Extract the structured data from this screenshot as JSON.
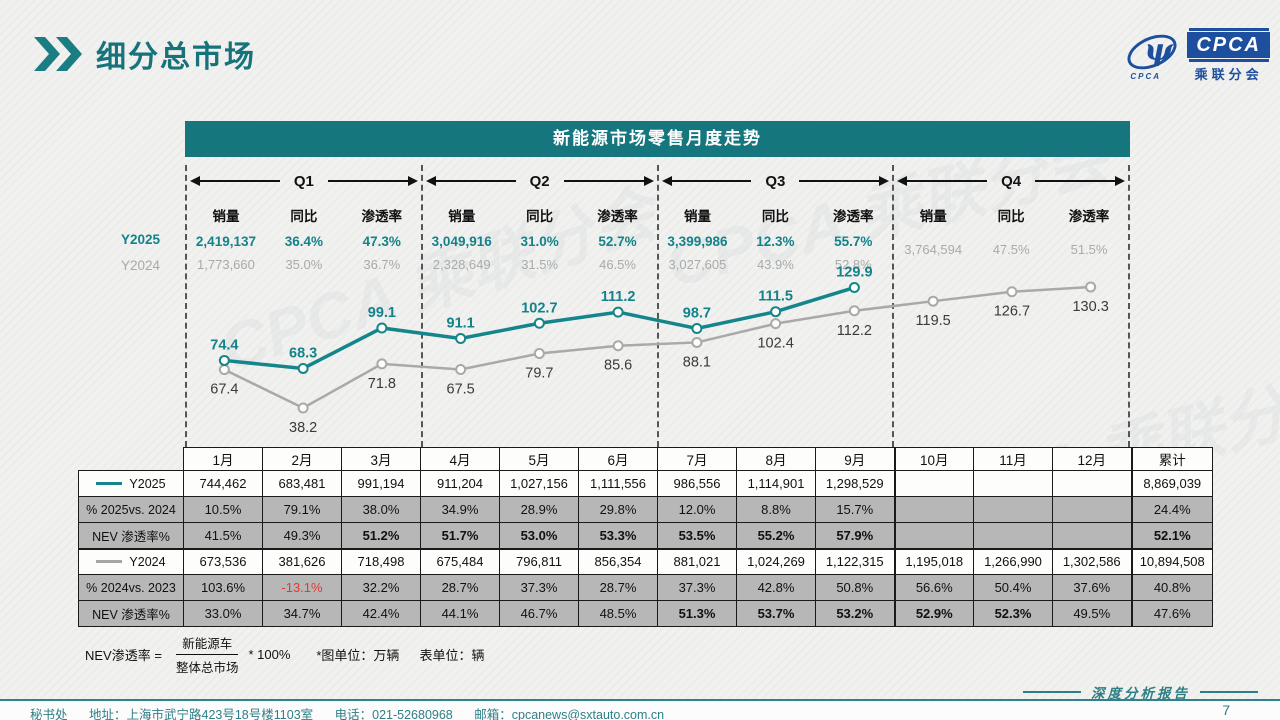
{
  "header": {
    "title": "细分总市场",
    "logo": {
      "acronym": "CPCA",
      "subtitle": "乘联分会",
      "swoosh_text": "CPCA"
    }
  },
  "watermark": "CPCA 乘联分会",
  "banner": "新能源市场零售月度走势",
  "quarter_columns": [
    "销量",
    "同比",
    "渗透率"
  ],
  "quarters": [
    {
      "label": "Q1",
      "y2025": [
        "2,419,137",
        "36.4%",
        "47.3%"
      ],
      "y2024": [
        "1,773,660",
        "35.0%",
        "36.7%"
      ]
    },
    {
      "label": "Q2",
      "y2025": [
        "3,049,916",
        "31.0%",
        "52.7%"
      ],
      "y2024": [
        "2,328,649",
        "31.5%",
        "46.5%"
      ]
    },
    {
      "label": "Q3",
      "y2025": [
        "3,399,986",
        "12.3%",
        "55.7%"
      ],
      "y2024": [
        "3,027,605",
        "43.9%",
        "52.8%"
      ]
    },
    {
      "label": "Q4",
      "y2025": [
        "",
        "",
        ""
      ],
      "y2024": [
        "3,764,594",
        "47.5%",
        "51.5%"
      ]
    }
  ],
  "series_labels": {
    "y2025": "Y2025",
    "y2024": "Y2024"
  },
  "chart_data": {
    "type": "line",
    "title": "新能源市场零售月度走势",
    "x": [
      "1月",
      "2月",
      "3月",
      "4月",
      "5月",
      "6月",
      "7月",
      "8月",
      "9月",
      "10月",
      "11月",
      "12月"
    ],
    "unit": "万辆",
    "ylim": [
      30,
      140
    ],
    "grid": false,
    "series": [
      {
        "name": "Y2025",
        "color": "#14858b",
        "values": [
          74.4,
          68.3,
          99.1,
          91.1,
          102.7,
          111.2,
          98.7,
          111.5,
          129.9
        ]
      },
      {
        "name": "Y2024",
        "color": "#a9a9a9",
        "values": [
          67.4,
          38.2,
          71.8,
          67.5,
          79.7,
          85.6,
          88.1,
          102.4,
          112.2,
          119.5,
          126.7,
          130.3
        ]
      }
    ]
  },
  "table": {
    "header": [
      "",
      "1月",
      "2月",
      "3月",
      "4月",
      "5月",
      "6月",
      "7月",
      "8月",
      "9月",
      "10月",
      "11月",
      "12月",
      "累计"
    ],
    "rows": [
      {
        "label": "Y2025",
        "swatch": "#14858b",
        "shaded": false,
        "nev": false,
        "group_start": false,
        "cells": [
          "744,462",
          "683,481",
          "991,194",
          "911,204",
          "1,027,156",
          "1,111,556",
          "986,556",
          "1,114,901",
          "1,298,529",
          "",
          "",
          "",
          "8,869,039"
        ]
      },
      {
        "label": "% 2025vs. 2024",
        "shaded": true,
        "nev": false,
        "group_start": false,
        "cells": [
          "10.5%",
          "79.1%",
          "38.0%",
          "34.9%",
          "28.9%",
          "29.8%",
          "12.0%",
          "8.8%",
          "15.7%",
          "",
          "",
          "",
          "24.4%"
        ]
      },
      {
        "label": "NEV 渗透率%",
        "shaded": true,
        "nev": true,
        "group_start": false,
        "cells": [
          "41.5%",
          "49.3%",
          "51.2%",
          "51.7%",
          "53.0%",
          "53.3%",
          "53.5%",
          "55.2%",
          "57.9%",
          "",
          "",
          "",
          "52.1%"
        ]
      },
      {
        "label": "Y2024",
        "swatch": "#a6a6a6",
        "shaded": false,
        "nev": false,
        "group_start": true,
        "cells": [
          "673,536",
          "381,626",
          "718,498",
          "675,484",
          "796,811",
          "856,354",
          "881,021",
          "1,024,269",
          "1,122,315",
          "1,195,018",
          "1,266,990",
          "1,302,586",
          "10,894,508"
        ]
      },
      {
        "label": "% 2024vs. 2023",
        "shaded": true,
        "nev": false,
        "group_start": false,
        "cells": [
          "103.6%",
          "-13.1%",
          "32.2%",
          "28.7%",
          "37.3%",
          "28.7%",
          "37.3%",
          "42.8%",
          "50.8%",
          "56.6%",
          "50.4%",
          "37.6%",
          "40.8%"
        ]
      },
      {
        "label": "NEV 渗透率%",
        "shaded": true,
        "nev": true,
        "group_start": false,
        "cells": [
          "33.0%",
          "34.7%",
          "42.4%",
          "44.1%",
          "46.7%",
          "48.5%",
          "51.3%",
          "53.7%",
          "53.2%",
          "52.9%",
          "52.3%",
          "49.5%",
          "47.6%"
        ]
      }
    ]
  },
  "formula": {
    "lhs": "NEV渗透率 =",
    "numerator": "新能源车",
    "denominator": "整体总市场",
    "rhs": "* 100%",
    "note1": "*图单位：万辆",
    "note2": "表单位：辆"
  },
  "footer": {
    "segments": [
      "秘书处",
      "地址：上海市武宁路423号18号楼1103室",
      "电话：021-52680968",
      "邮箱：cpcanews@sxtauto.com.cn"
    ],
    "report_label": "深度分析报告",
    "page": "7"
  },
  "colors": {
    "teal": "#16767d",
    "blue": "#1d4f9e",
    "gray_row": "#b7b7b7",
    "negative": "#e03b2e"
  }
}
